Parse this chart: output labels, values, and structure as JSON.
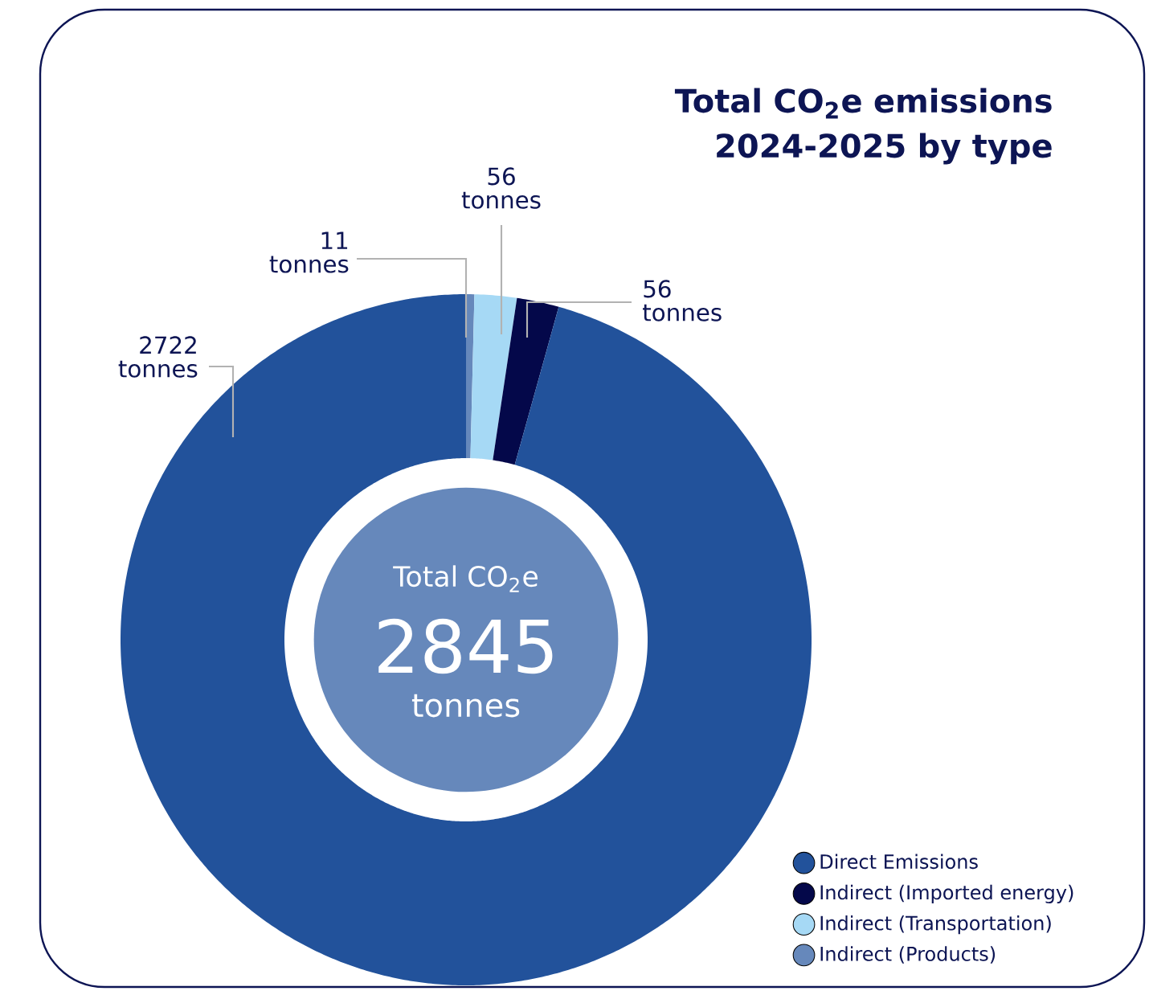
{
  "chart_data": {
    "type": "donut",
    "title": "Total CO$_{2}$e emissions 2024-2025 by type",
    "categories": [
      "Direct Emissions",
      "Indirect (Imported energy)",
      "Indirect (Transportation)",
      "Indirect (Products)"
    ],
    "values": [
      2722,
      56,
      56,
      11
    ],
    "colors": [
      "#22529b",
      "#04084a",
      "#a6d9f5",
      "#6688bb"
    ],
    "value_labels": [
      "2722 tonnes",
      "56 tonnes",
      "56 tonnes",
      "11 tonnes"
    ],
    "annotations": [
      "Total CO$_{2}$e",
      "2845",
      "tonnes"
    ],
    "legend": "right"
  }
}
